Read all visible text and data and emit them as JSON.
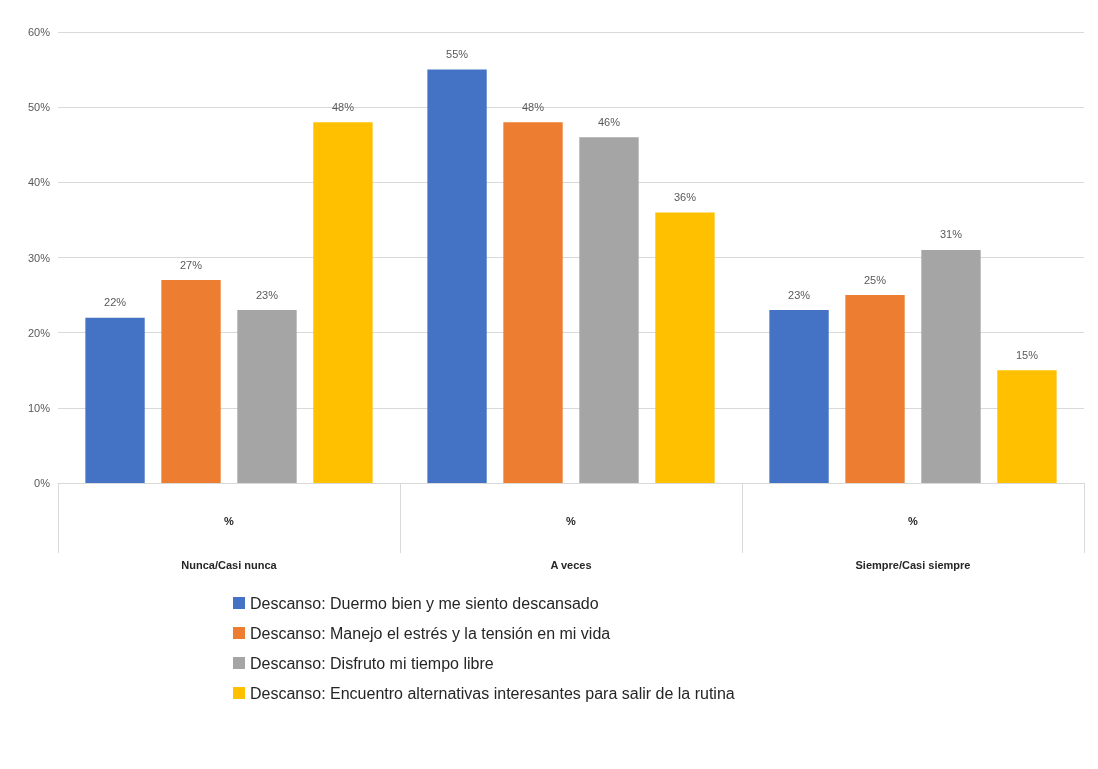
{
  "chart_data": {
    "type": "bar",
    "categories": [
      "%\nNunca/Casi nunca",
      "%\nA veces",
      "%\nSiempre/Casi siempre"
    ],
    "series": [
      {
        "name": "Descanso: Duermo bien y me siento descansado",
        "color": "#4472c4",
        "values": [
          22,
          55,
          23
        ],
        "value_labels": [
          "22%",
          "55%",
          "23%"
        ]
      },
      {
        "name": "Descanso: Manejo el estrés y la tensión en mi vida",
        "color": "#ed7d31",
        "values": [
          27,
          48,
          25
        ],
        "value_labels": [
          "27%",
          "48%",
          "25%"
        ]
      },
      {
        "name": "Descanso: Disfruto mi tiempo libre",
        "color": "#a5a5a5",
        "values": [
          23,
          46,
          31
        ],
        "value_labels": [
          "23%",
          "46%",
          "31%"
        ]
      },
      {
        "name": "Descanso: Encuentro alternativas interesantes para salir de la rutina",
        "color": "#ffc000",
        "values": [
          48,
          36,
          15
        ],
        "value_labels": [
          "48%",
          "36%",
          "15%"
        ]
      }
    ],
    "ylim": [
      0,
      60
    ],
    "yticks": [
      {
        "value": 0,
        "label": "0%"
      },
      {
        "value": 10,
        "label": "10%"
      },
      {
        "value": 20,
        "label": "20%"
      },
      {
        "value": 30,
        "label": "30%"
      },
      {
        "value": 40,
        "label": "40%"
      },
      {
        "value": 50,
        "label": "50%"
      },
      {
        "value": 60,
        "label": "60%"
      }
    ],
    "grid": "y",
    "legend": "bottom"
  }
}
